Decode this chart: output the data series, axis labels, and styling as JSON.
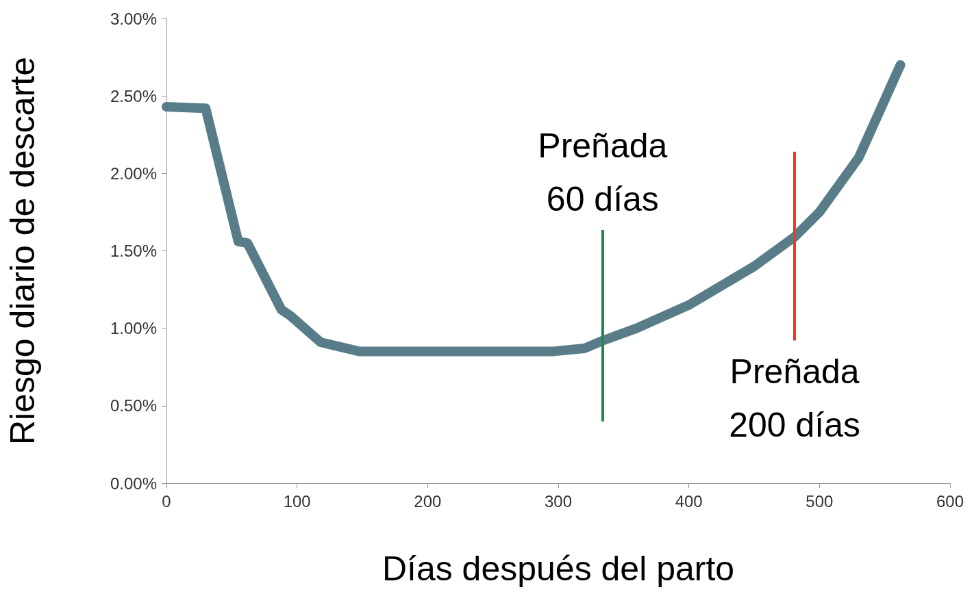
{
  "chart_data": {
    "type": "line",
    "xlabel": "Días después del parto",
    "ylabel": "Riesgo diario de descarte",
    "xlim": [
      0,
      600
    ],
    "xticks": [
      0,
      100,
      200,
      300,
      400,
      500,
      600
    ],
    "ylim": [
      0,
      3
    ],
    "yticks": [
      {
        "value": 0,
        "label": "0.00%"
      },
      {
        "value": 0.5,
        "label": "0.50%"
      },
      {
        "value": 1,
        "label": "1.00%"
      },
      {
        "value": 1.5,
        "label": "1.50%"
      },
      {
        "value": 2,
        "label": "2.00%"
      },
      {
        "value": 2.5,
        "label": "2.50%"
      },
      {
        "value": 3,
        "label": "3.00%"
      }
    ],
    "series": [
      {
        "color": "#587d88",
        "x": [
          0,
          30,
          55,
          62,
          88,
          95,
          118,
          148,
          295,
          320,
          334,
          360,
          400,
          450,
          481,
          500,
          530,
          562
        ],
        "values": [
          2.43,
          2.42,
          1.56,
          1.55,
          1.12,
          1.08,
          0.91,
          0.85,
          0.85,
          0.87,
          0.92,
          1.0,
          1.15,
          1.4,
          1.59,
          1.75,
          2.1,
          2.7
        ]
      }
    ],
    "ref_lines": [
      {
        "axis": "x",
        "value": 334,
        "label": "Preñada\n60 días",
        "color": "#1a8a45"
      },
      {
        "axis": "x",
        "value": 481,
        "label": "Preñada\n200 días",
        "color": "#f03c1e"
      }
    ],
    "grid": false,
    "line_style": "solid"
  }
}
